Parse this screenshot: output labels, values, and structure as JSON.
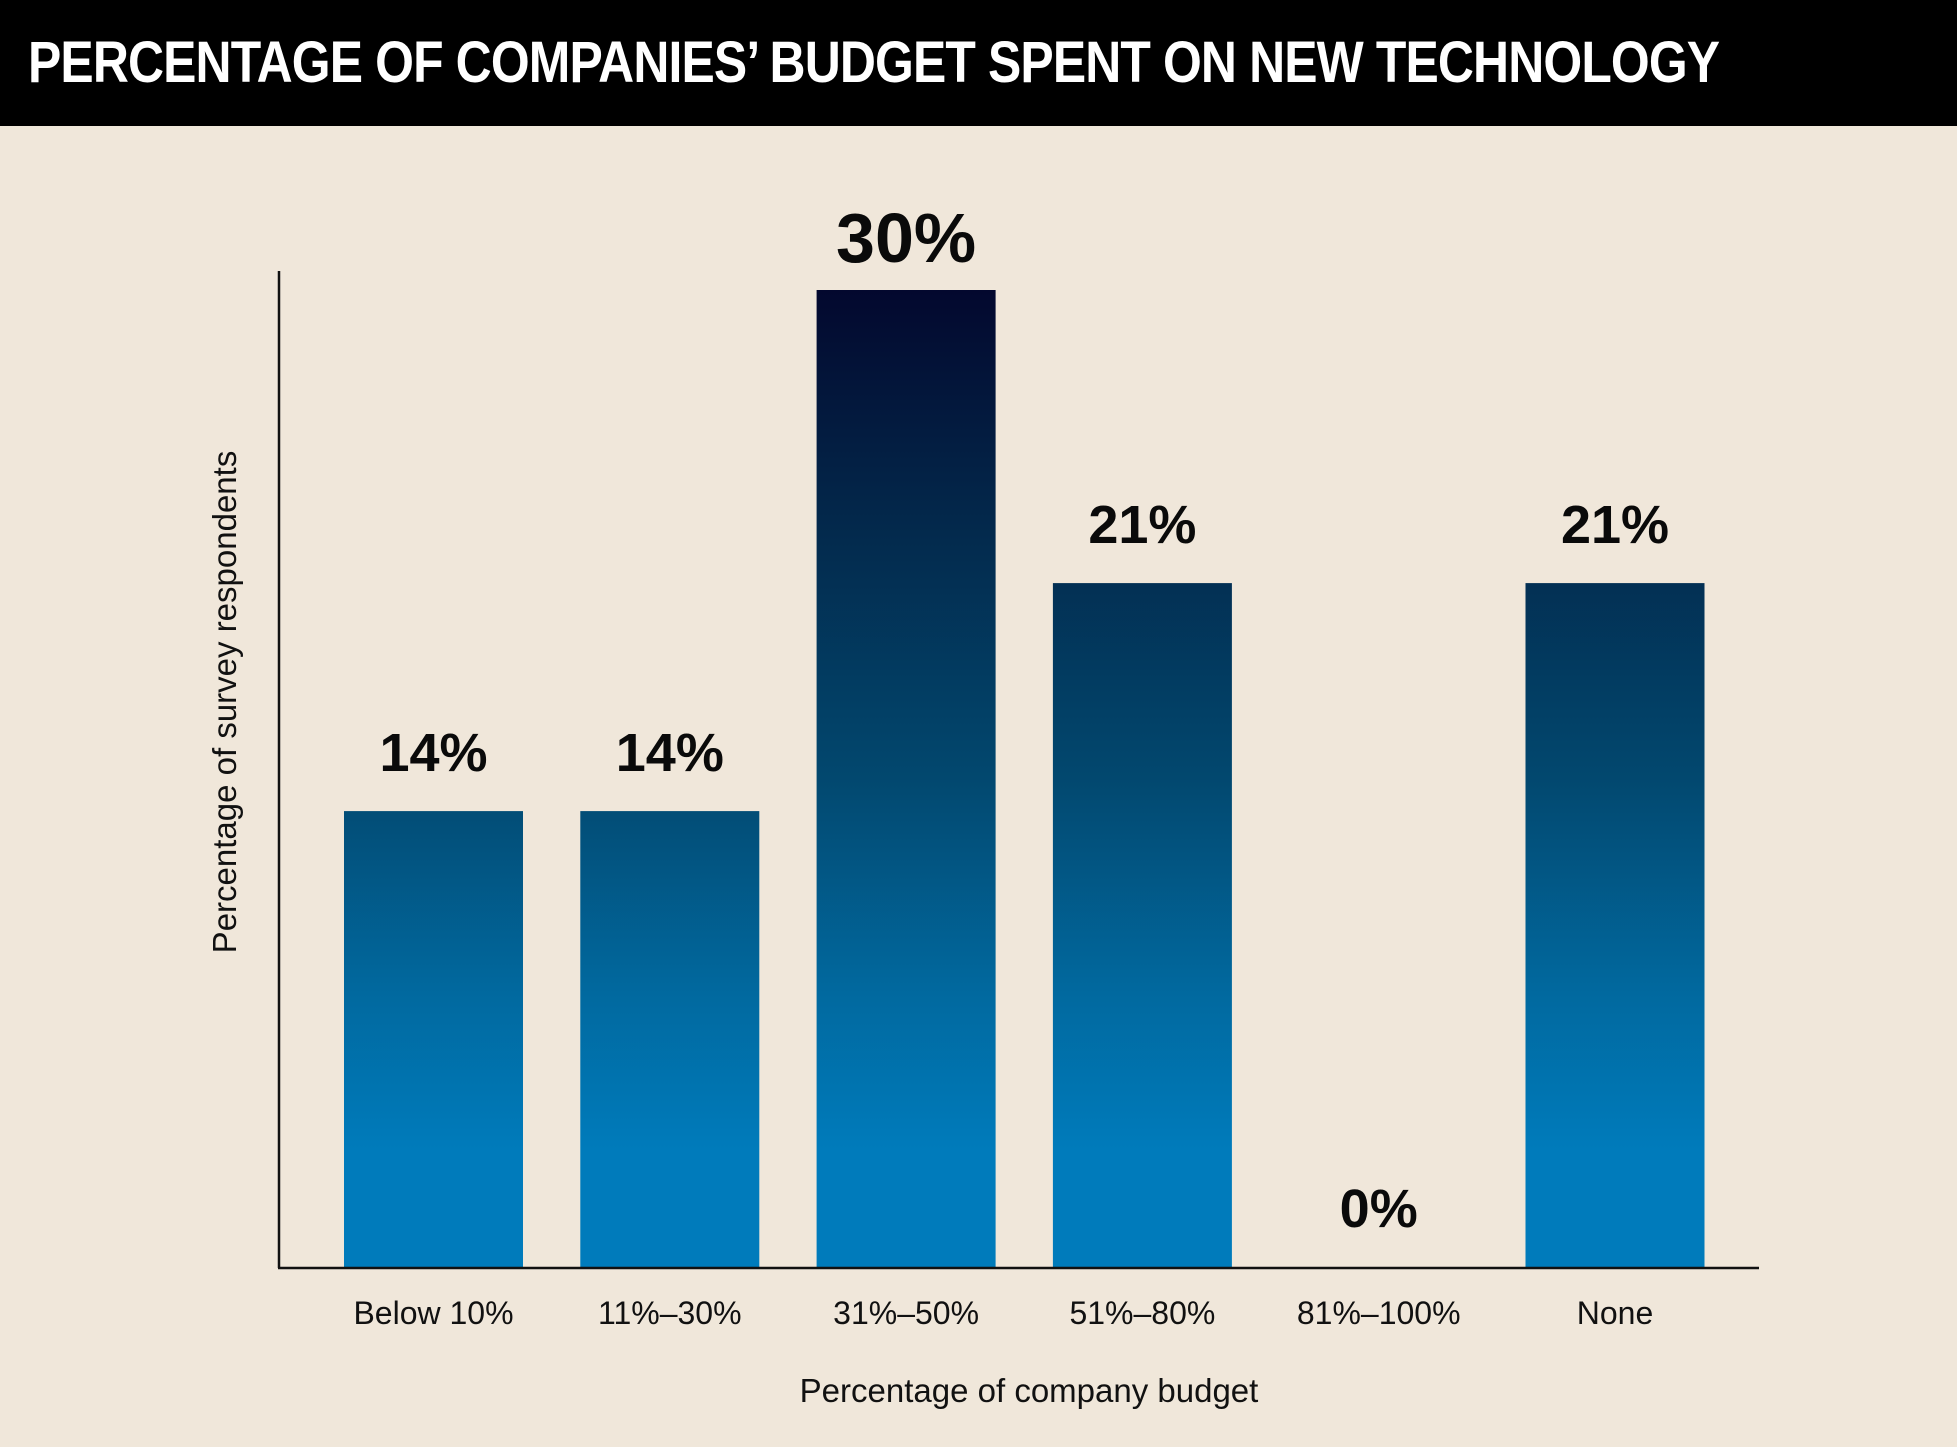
{
  "chart_data": {
    "type": "bar",
    "title": "PERCENTAGE OF COMPANIES’ BUDGET SPENT ON NEW TECHNOLOGY",
    "xlabel": "Percentage of company budget",
    "ylabel": "Percentage of survey respondents",
    "categories": [
      "Below 10%",
      "11%–30%",
      "31%–50%",
      "51%–80%",
      "81%–100%",
      "None"
    ],
    "values": [
      14,
      14,
      30,
      21,
      0,
      21
    ],
    "value_labels": [
      "14%",
      "14%",
      "30%",
      "21%",
      "0%",
      "21%"
    ],
    "ylim": [
      0,
      30
    ],
    "grid": false,
    "legend": "none",
    "colors": {
      "bar_top": "#03082e",
      "bar_bottom": "#007bbb",
      "background": "#f0e7da",
      "title_background": "#000000",
      "title_text": "#ffffff"
    }
  }
}
